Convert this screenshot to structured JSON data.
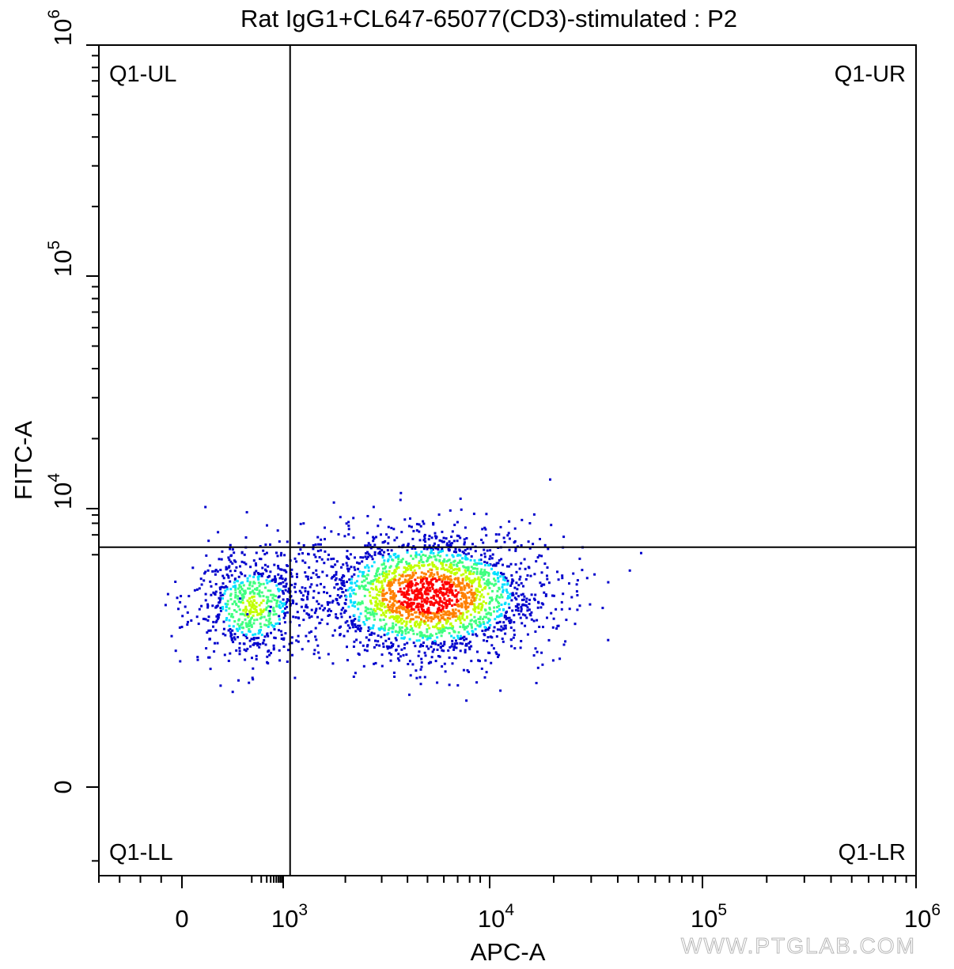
{
  "chart_data": {
    "type": "scatter",
    "title": "Rat IgG1+CL647-65077(CD3)-stimulated : P2",
    "xlabel": "APC-A",
    "ylabel": "FITC-A",
    "x_scale": "biexponential",
    "y_scale": "biexponential",
    "xlim": [
      -400,
      1000000
    ],
    "ylim": [
      -600,
      1000000
    ],
    "x_ticks": [
      {
        "value": 0,
        "base": "0",
        "exp": ""
      },
      {
        "value": 1000,
        "base": "10",
        "exp": "3"
      },
      {
        "value": 10000,
        "base": "10",
        "exp": "4"
      },
      {
        "value": 100000,
        "base": "10",
        "exp": "5"
      },
      {
        "value": 1000000,
        "base": "10",
        "exp": "6"
      }
    ],
    "y_ticks": [
      {
        "value": 0,
        "base": "0",
        "exp": ""
      },
      {
        "value": 10000,
        "base": "10",
        "exp": "4"
      },
      {
        "value": 100000,
        "base": "10",
        "exp": "5"
      },
      {
        "value": 1000000,
        "base": "10",
        "exp": "6"
      }
    ],
    "quadrant_gate": {
      "x": 1080,
      "y": 2600
    },
    "quadrants": [
      "Q1-UL",
      "Q1-UR",
      "Q1-LL",
      "Q1-LR"
    ],
    "populations": [
      {
        "name": "APC-negative cluster",
        "x_center": 100,
        "y_center": 350,
        "count": 700
      },
      {
        "name": "APC-positive cluster",
        "x_center": 6500,
        "y_center": 500,
        "count": 2400
      }
    ],
    "outliers": [
      [
        2000,
        6200
      ],
      [
        1200,
        6100
      ],
      [
        4500,
        6000
      ],
      [
        6900,
        6500
      ],
      [
        16000,
        8500
      ],
      [
        19000,
        13500
      ],
      [
        14000,
        7000
      ],
      [
        13000,
        5200
      ],
      [
        22000,
        3900
      ],
      [
        17000,
        3600
      ],
      [
        12000,
        4100
      ],
      [
        3300,
        5300
      ],
      [
        3700,
        4600
      ],
      [
        6300,
        3300
      ],
      [
        9500,
        4100
      ],
      [
        9000,
        3500
      ],
      [
        45000,
        1200
      ],
      [
        280,
        5800
      ],
      [
        60,
        3800
      ],
      [
        700,
        3300
      ],
      [
        800,
        2200
      ],
      [
        27000,
        2700
      ],
      [
        18000,
        2900
      ],
      [
        7000,
        4000
      ],
      [
        3000,
        3200
      ]
    ],
    "density_colormap": [
      "#0000cc",
      "#0080ff",
      "#00e0ff",
      "#40ff80",
      "#c0ff00",
      "#ff8000",
      "#ff0000"
    ],
    "grid": false
  },
  "watermark": "WWW.PTGLAB.COM"
}
